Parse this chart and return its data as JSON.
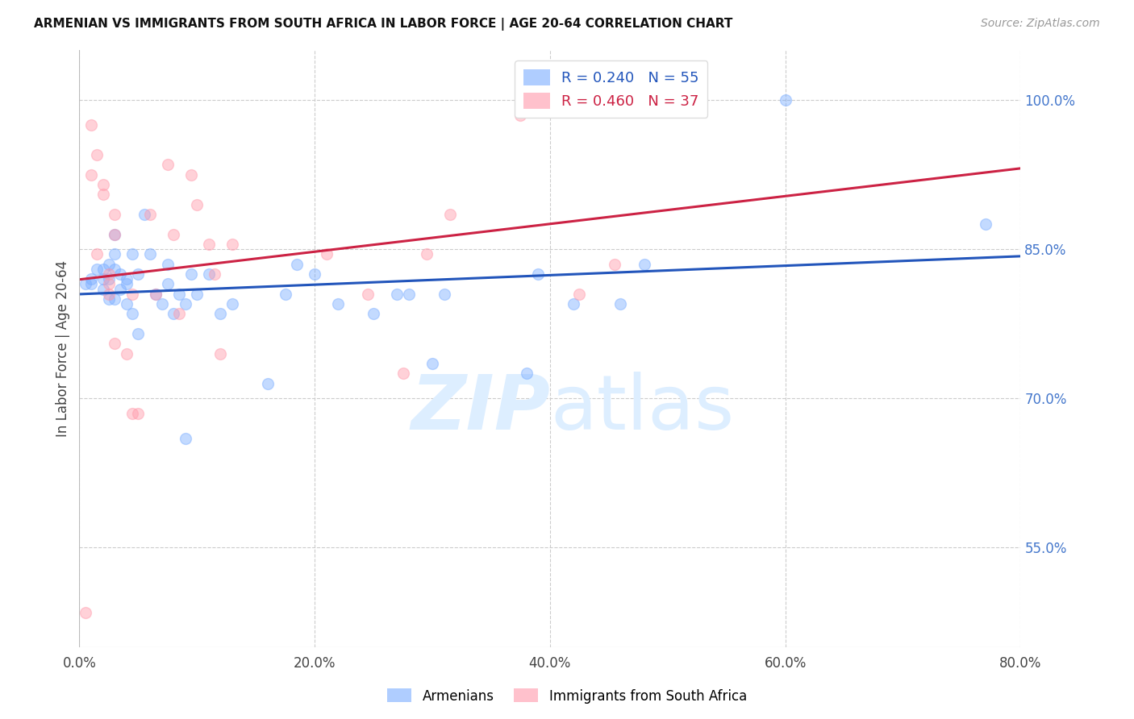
{
  "title": "ARMENIAN VS IMMIGRANTS FROM SOUTH AFRICA IN LABOR FORCE | AGE 20-64 CORRELATION CHART",
  "source_text": "Source: ZipAtlas.com",
  "ylabel": "In Labor Force | Age 20-64",
  "xlabel_ticks": [
    "0.0%",
    "",
    "",
    "",
    "",
    "20.0%",
    "",
    "",
    "",
    "",
    "40.0%",
    "",
    "",
    "",
    "",
    "60.0%",
    "",
    "",
    "",
    "",
    "80.0%"
  ],
  "xlabel_vals": [
    0.0,
    0.04,
    0.08,
    0.12,
    0.16,
    0.2,
    0.24,
    0.28,
    0.32,
    0.36,
    0.4,
    0.44,
    0.48,
    0.52,
    0.56,
    0.6,
    0.64,
    0.68,
    0.72,
    0.76,
    0.8
  ],
  "xlabel_display_ticks": [
    0.0,
    0.2,
    0.4,
    0.6,
    0.8
  ],
  "xlabel_display_labels": [
    "0.0%",
    "20.0%",
    "40.0%",
    "60.0%",
    "80.0%"
  ],
  "ylabel_ticks_right": [
    "100.0%",
    "85.0%",
    "70.0%",
    "55.0%"
  ],
  "ylabel_vals_right": [
    1.0,
    0.85,
    0.7,
    0.55
  ],
  "xlim": [
    0.0,
    0.8
  ],
  "ylim": [
    0.45,
    1.05
  ],
  "armenian_R": 0.24,
  "armenian_N": 55,
  "sa_R": 0.46,
  "sa_N": 37,
  "armenian_color": "#7aadff",
  "sa_color": "#ff99aa",
  "armenian_line_color": "#2255bb",
  "sa_line_color": "#cc2244",
  "grid_color": "#cccccc",
  "watermark_color": "#ddeeff",
  "armenian_x": [
    0.005,
    0.01,
    0.01,
    0.015,
    0.02,
    0.02,
    0.02,
    0.025,
    0.025,
    0.025,
    0.03,
    0.03,
    0.03,
    0.03,
    0.035,
    0.035,
    0.04,
    0.04,
    0.04,
    0.045,
    0.045,
    0.05,
    0.05,
    0.055,
    0.06,
    0.065,
    0.07,
    0.075,
    0.075,
    0.08,
    0.085,
    0.09,
    0.09,
    0.095,
    0.1,
    0.11,
    0.12,
    0.13,
    0.16,
    0.175,
    0.185,
    0.2,
    0.22,
    0.25,
    0.27,
    0.28,
    0.3,
    0.31,
    0.38,
    0.39,
    0.42,
    0.46,
    0.48,
    0.6,
    0.77
  ],
  "armenian_y": [
    0.815,
    0.82,
    0.815,
    0.83,
    0.83,
    0.82,
    0.81,
    0.835,
    0.82,
    0.8,
    0.865,
    0.845,
    0.83,
    0.8,
    0.825,
    0.81,
    0.82,
    0.815,
    0.795,
    0.845,
    0.785,
    0.825,
    0.765,
    0.885,
    0.845,
    0.805,
    0.795,
    0.835,
    0.815,
    0.785,
    0.805,
    0.795,
    0.66,
    0.825,
    0.805,
    0.825,
    0.785,
    0.795,
    0.715,
    0.805,
    0.835,
    0.825,
    0.795,
    0.785,
    0.805,
    0.805,
    0.735,
    0.805,
    0.725,
    0.825,
    0.795,
    0.795,
    0.835,
    1.0,
    0.875
  ],
  "sa_x": [
    0.005,
    0.01,
    0.01,
    0.015,
    0.015,
    0.02,
    0.02,
    0.025,
    0.025,
    0.025,
    0.03,
    0.03,
    0.03,
    0.04,
    0.045,
    0.045,
    0.05,
    0.06,
    0.065,
    0.075,
    0.08,
    0.085,
    0.095,
    0.1,
    0.11,
    0.115,
    0.12,
    0.13,
    0.21,
    0.245,
    0.275,
    0.295,
    0.315,
    0.375,
    0.425,
    0.455,
    0.51
  ],
  "sa_y": [
    0.485,
    0.975,
    0.925,
    0.945,
    0.845,
    0.905,
    0.915,
    0.825,
    0.815,
    0.805,
    0.885,
    0.865,
    0.755,
    0.745,
    0.805,
    0.685,
    0.685,
    0.885,
    0.805,
    0.935,
    0.865,
    0.785,
    0.925,
    0.895,
    0.855,
    0.825,
    0.745,
    0.855,
    0.845,
    0.805,
    0.725,
    0.845,
    0.885,
    0.985,
    0.805,
    0.835,
    0.995
  ]
}
